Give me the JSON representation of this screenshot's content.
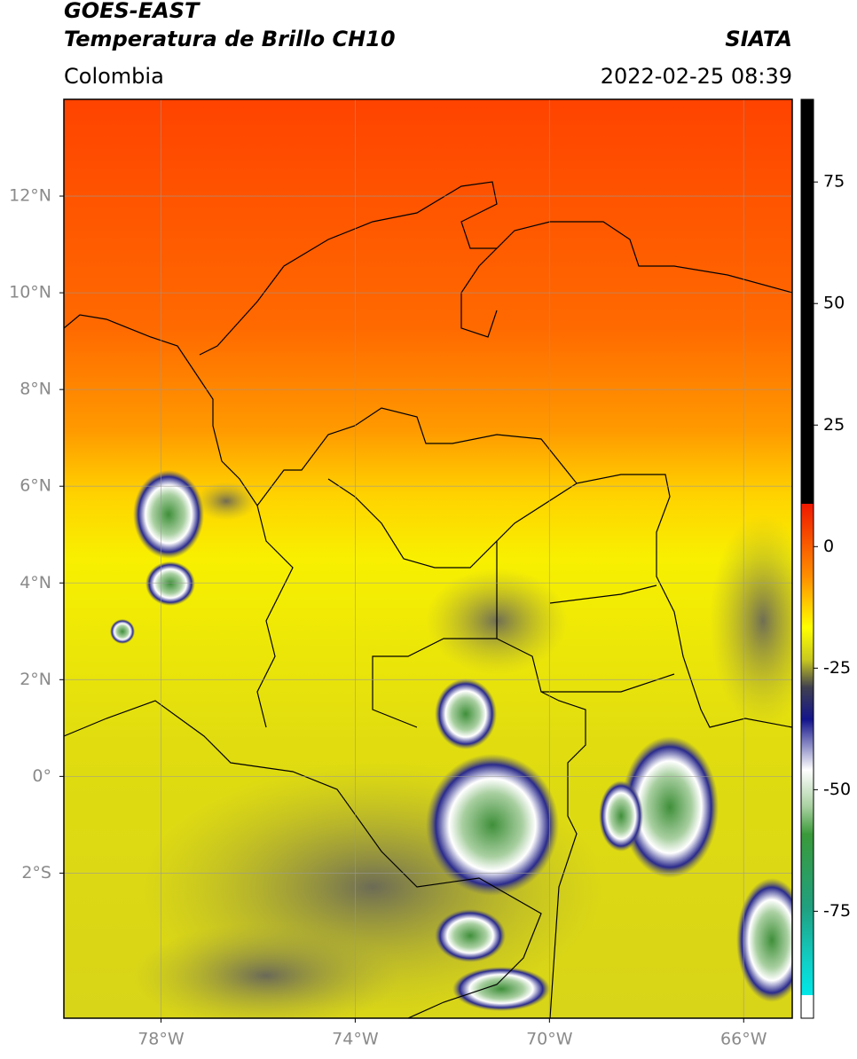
{
  "header": {
    "title_line1": "GOES-EAST",
    "title_line2": "Temperatura de Brillo CH10",
    "region": "Colombia",
    "source": "SIATA",
    "datetime": "2022-02-25 08:39"
  },
  "map": {
    "xlim": [
      -80,
      -65
    ],
    "ylim": [
      -5,
      14
    ],
    "xticks": [
      {
        "value": -78,
        "label": "78°W"
      },
      {
        "value": -74,
        "label": "74°W"
      },
      {
        "value": -70,
        "label": "70°W"
      },
      {
        "value": -66,
        "label": "66°W"
      }
    ],
    "yticks": [
      {
        "value": 12,
        "label": "12°N"
      },
      {
        "value": 10,
        "label": "10°N"
      },
      {
        "value": 8,
        "label": "8°N"
      },
      {
        "value": 6,
        "label": "6°N"
      },
      {
        "value": 4,
        "label": "4°N"
      },
      {
        "value": 2,
        "label": "2°N"
      },
      {
        "value": 0,
        "label": "0°"
      },
      {
        "value": -2,
        "label": "2°S"
      }
    ]
  },
  "colorbar": {
    "lim": [
      -97,
      92
    ],
    "ticks": [
      75,
      50,
      25,
      0,
      -25,
      -50,
      -75
    ]
  }
}
